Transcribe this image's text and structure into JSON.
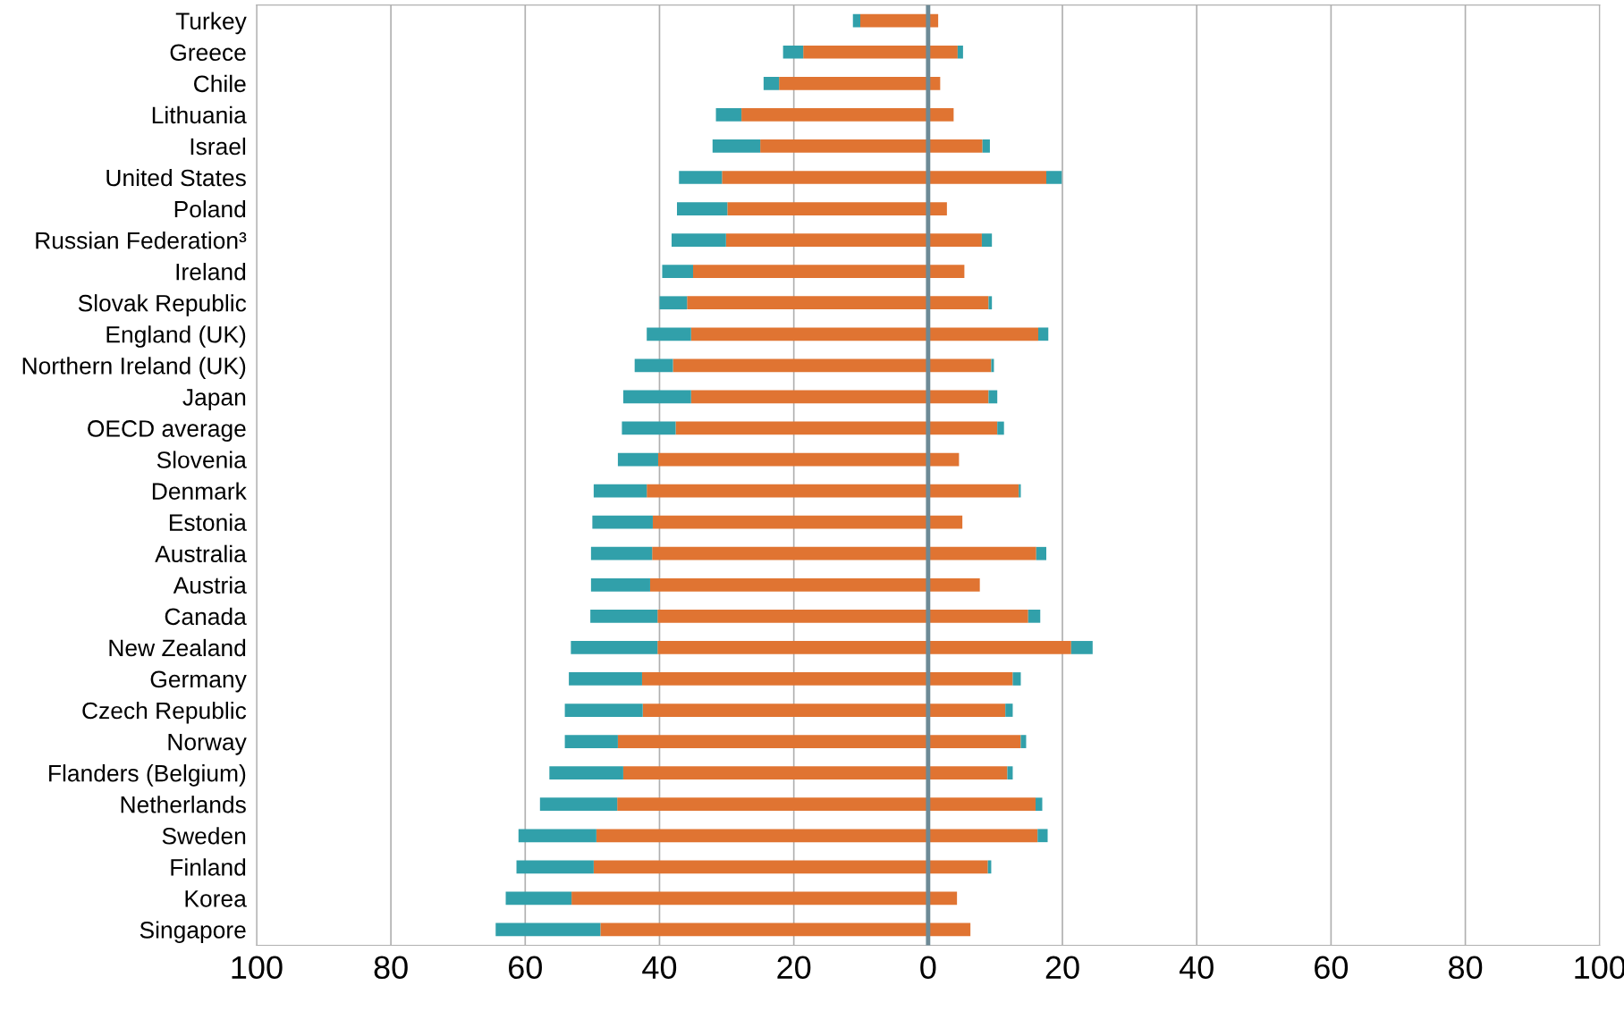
{
  "chart_data": {
    "type": "bar",
    "orientation": "horizontal",
    "stacked": true,
    "categories": [
      "Turkey",
      "Greece",
      "Chile",
      "Lithuania",
      "Israel",
      "United States",
      "Poland",
      "Russian Federation³",
      "Ireland",
      "Slovak Republic",
      "England (UK)",
      "Northern Ireland (UK)",
      "Japan",
      "OECD average",
      "Slovenia",
      "Denmark",
      "Estonia",
      "Australia",
      "Austria",
      "Canada",
      "New Zealand",
      "Germany",
      "Czech Republic",
      "Norway",
      "Flanders (Belgium)",
      "Netherlands",
      "Sweden",
      "Finland",
      "Korea",
      "Singapore"
    ],
    "series": [
      {
        "color": "#e07432",
        "values": [
          -10.1,
          -18.6,
          -22.2,
          -27.8,
          -25.0,
          -30.7,
          -29.9,
          -30.1,
          -35.0,
          -35.9,
          -35.3,
          -38.0,
          -35.3,
          -37.6,
          -40.2,
          -41.9,
          -41.0,
          -41.1,
          -41.4,
          -40.3,
          -40.3,
          -42.6,
          -42.5,
          -46.2,
          -45.4,
          -46.3,
          -49.4,
          -49.8,
          -53.1,
          -48.8
        ]
      },
      {
        "color": "#31a0aa",
        "values": [
          -1.1,
          -3.0,
          -2.3,
          -3.8,
          -7.1,
          -6.4,
          -7.5,
          -8.1,
          -4.6,
          -4.1,
          -6.6,
          -5.7,
          -10.1,
          -8.0,
          -6.0,
          -7.9,
          -9.0,
          -9.1,
          -8.8,
          -10.0,
          -12.9,
          -10.9,
          -11.6,
          -7.9,
          -11.0,
          -11.5,
          -11.6,
          -11.5,
          -9.8,
          -15.6
        ]
      },
      {
        "color": "#e07432",
        "values": [
          1.5,
          4.4,
          1.8,
          3.8,
          8.1,
          17.6,
          2.8,
          8.0,
          5.4,
          9.0,
          16.4,
          9.4,
          9.0,
          10.3,
          4.6,
          13.5,
          5.1,
          16.1,
          7.7,
          14.9,
          21.3,
          12.6,
          11.5,
          13.8,
          11.8,
          16.0,
          16.3,
          8.9,
          4.3,
          6.3
        ]
      },
      {
        "color": "#31a0aa",
        "values": [
          null,
          0.8,
          null,
          null,
          1.1,
          2.3,
          null,
          1.5,
          null,
          0.5,
          1.5,
          0.4,
          1.3,
          1.0,
          null,
          0.3,
          null,
          1.5,
          null,
          1.8,
          3.2,
          1.2,
          1.1,
          0.8,
          0.8,
          1.0,
          1.5,
          0.5,
          null,
          null
        ]
      }
    ],
    "xlim": [
      -100,
      100
    ],
    "xticks": [
      {
        "value": -100,
        "label": "100"
      },
      {
        "value": -80,
        "label": "80"
      },
      {
        "value": -60,
        "label": "60"
      },
      {
        "value": -40,
        "label": "40"
      },
      {
        "value": -20,
        "label": "20"
      },
      0,
      20,
      40,
      60,
      80,
      100
    ],
    "grid": "x",
    "ref_lines": [
      {
        "axis": "x",
        "value": 0,
        "color": "#6d8a96"
      }
    ]
  }
}
